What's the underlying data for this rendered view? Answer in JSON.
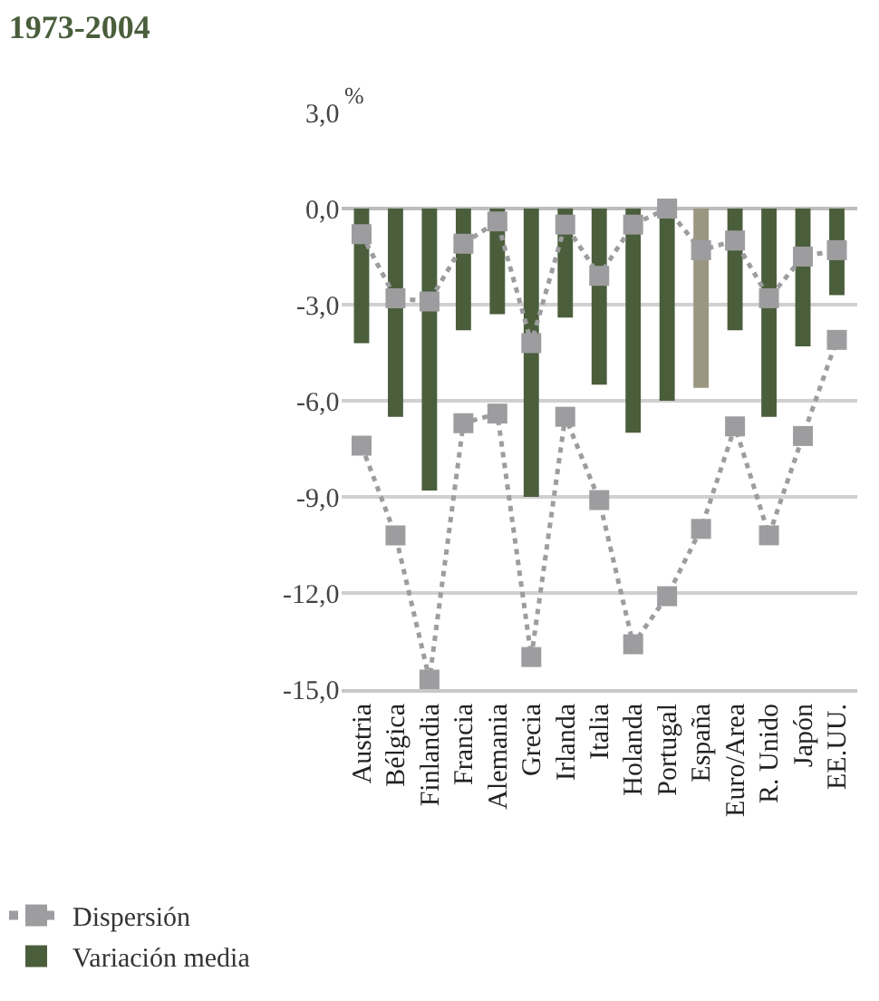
{
  "chart_data": {
    "type": "bar",
    "title": "1973-2004",
    "ylabel": "%",
    "categories": [
      "Austria",
      "Bélgica",
      "Finlandia",
      "Francia",
      "Alemania",
      "Grecia",
      "Irlanda",
      "Italia",
      "Holanda",
      "Portugal",
      "España",
      "Euro/Area",
      "R. Unido",
      "Japón",
      "EE.UU."
    ],
    "series": [
      {
        "name": "Variación media",
        "colors": [
          "#4a5e3c",
          "#4a5e3c",
          "#4a5e3c",
          "#4a5e3c",
          "#4a5e3c",
          "#4a5e3c",
          "#4a5e3c",
          "#4a5e3c",
          "#4a5e3c",
          "#4a5e3c",
          "#9b9680",
          "#4a5e3c",
          "#4a5e3c",
          "#4a5e3c",
          "#4a5e3c"
        ],
        "values": [
          -4.2,
          -6.5,
          -8.8,
          -3.8,
          -3.3,
          -9.0,
          -3.4,
          -5.5,
          -7.0,
          -6.0,
          -5.6,
          -3.8,
          -6.5,
          -4.3,
          -2.7
        ]
      },
      {
        "name": "Dispersión",
        "type": "line",
        "color": "#9d9da0",
        "marker": "square",
        "line_style": "dotted",
        "values": [
          -0.8,
          -2.8,
          -2.9,
          -1.1,
          -0.4,
          -4.2,
          -0.5,
          -2.1,
          -0.5,
          0.0,
          -1.3,
          -1.0,
          -2.8,
          -1.5,
          -1.3
        ]
      },
      {
        "type": "line",
        "color": "#9d9da0",
        "marker": "square",
        "line_style": "dotted",
        "values": [
          -7.4,
          -10.2,
          -14.7,
          -6.7,
          -6.4,
          -14.0,
          -6.5,
          -9.1,
          -13.6,
          -12.1,
          -10.0,
          -6.8,
          -10.2,
          -7.1,
          -4.1
        ]
      }
    ],
    "ylim": [
      -15,
      3
    ],
    "yticks": [
      {
        "value": 3,
        "label": "3,0"
      },
      {
        "value": 0,
        "label": "0,0"
      },
      {
        "value": -3,
        "label": "-3,0"
      },
      {
        "value": -6,
        "label": "-6,0"
      },
      {
        "value": -9,
        "label": "-9,0"
      },
      {
        "value": -12,
        "label": "-12,0"
      },
      {
        "value": -15,
        "label": "-15,0"
      }
    ],
    "grid": "y",
    "legend": "bottom left"
  }
}
